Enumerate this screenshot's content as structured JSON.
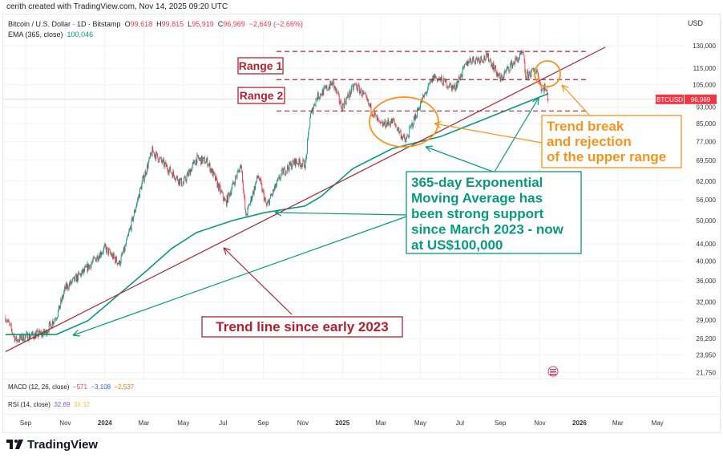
{
  "credit": "cerith created with TradingView.com, Nov 14, 2025 09:20 UTC",
  "legend": {
    "symbol": "Bitcoin / U.S. Dollar · 1D · Bitstamp",
    "o_label": "O",
    "o": "99,618",
    "h_label": "H",
    "h": "99,815",
    "l_label": "L",
    "l": "95,919",
    "c_label": "C",
    "c": "96,969",
    "change": "−2,649 (−2.66%)",
    "ema_label": "EMA (365, close)",
    "ema": "100,046"
  },
  "currency": "USD",
  "price_tag": {
    "symbol": "BTCUSD",
    "value": "96,969"
  },
  "macd": {
    "label": "MACD (12, 26, close)",
    "v1": "−571",
    "v2": "−3,108",
    "v3": "−2,537"
  },
  "rsi": {
    "label": "RSI (14, close)",
    "v1": "32.69",
    "v2": "39.32"
  },
  "brand": "TradingView",
  "colors": {
    "up": "#089981",
    "down": "#f23645",
    "ema": "#089981",
    "trend": "#b2222f",
    "orange": "#f7931a"
  },
  "chart_data": {
    "type": "candlestick",
    "title": "Bitcoin / U.S. Dollar · 1D · Bitstamp",
    "x_unit": "days since 2023-08-01",
    "y_scale": "log",
    "ylim": [
      21750,
      130000
    ],
    "y_ticks": [
      "130,000",
      "115,000",
      "105,000",
      "93,000",
      "85,000",
      "77,000",
      "69,500",
      "62,000",
      "56,000",
      "50,000",
      "44,000",
      "40,000",
      "36,000",
      "32,000",
      "29,000",
      "26,200",
      "23,950",
      "21,750"
    ],
    "y_tick_values": [
      130000,
      115000,
      105000,
      93000,
      85000,
      77000,
      69500,
      62000,
      56000,
      50000,
      44000,
      40000,
      36000,
      32000,
      29000,
      26200,
      23950,
      21750
    ],
    "x_ticks": [
      {
        "label": "Sep",
        "day": 31,
        "bold": false
      },
      {
        "label": "Nov",
        "day": 92,
        "bold": false
      },
      {
        "label": "2024",
        "day": 153,
        "bold": true
      },
      {
        "label": "Mar",
        "day": 213,
        "bold": false
      },
      {
        "label": "May",
        "day": 274,
        "bold": false
      },
      {
        "label": "Jul",
        "day": 335,
        "bold": false
      },
      {
        "label": "Sep",
        "day": 397,
        "bold": false
      },
      {
        "label": "Nov",
        "day": 458,
        "bold": false
      },
      {
        "label": "2025",
        "day": 519,
        "bold": true
      },
      {
        "label": "Mar",
        "day": 578,
        "bold": false
      },
      {
        "label": "May",
        "day": 639,
        "bold": false
      },
      {
        "label": "Jul",
        "day": 700,
        "bold": false
      },
      {
        "label": "Sep",
        "day": 762,
        "bold": false
      },
      {
        "label": "Nov",
        "day": 823,
        "bold": false
      },
      {
        "label": "2026",
        "day": 884,
        "bold": true
      },
      {
        "label": "Mar",
        "day": 943,
        "bold": false
      },
      {
        "label": "May",
        "day": 1004,
        "bold": false
      }
    ],
    "price_path": [
      [
        0,
        29500
      ],
      [
        16,
        26000
      ],
      [
        31,
        26500
      ],
      [
        61,
        27000
      ],
      [
        80,
        30000
      ],
      [
        92,
        34500
      ],
      [
        122,
        38000
      ],
      [
        153,
        43000
      ],
      [
        175,
        39500
      ],
      [
        184,
        43000
      ],
      [
        211,
        62000
      ],
      [
        226,
        73000
      ],
      [
        244,
        68000
      ],
      [
        273,
        61000
      ],
      [
        294,
        70000
      ],
      [
        311,
        69000
      ],
      [
        339,
        55000
      ],
      [
        363,
        68000
      ],
      [
        370,
        51000
      ],
      [
        389,
        64000
      ],
      [
        402,
        54000
      ],
      [
        426,
        65000
      ],
      [
        446,
        69000
      ],
      [
        462,
        68000
      ],
      [
        469,
        88000
      ],
      [
        479,
        98000
      ],
      [
        504,
        106000
      ],
      [
        518,
        93000
      ],
      [
        538,
        105000
      ],
      [
        550,
        100000
      ],
      [
        577,
        84000
      ],
      [
        597,
        86000
      ],
      [
        616,
        77000
      ],
      [
        638,
        94000
      ],
      [
        660,
        110000
      ],
      [
        691,
        103000
      ],
      [
        713,
        120000
      ],
      [
        744,
        122000
      ],
      [
        762,
        108000
      ],
      [
        776,
        116000
      ],
      [
        797,
        124500
      ],
      [
        801,
        110000
      ],
      [
        818,
        114000
      ],
      [
        826,
        102000
      ],
      [
        830,
        104000
      ],
      [
        836,
        96969
      ]
    ],
    "ema_365": [
      [
        0,
        26800
      ],
      [
        78,
        26800
      ],
      [
        127,
        28900
      ],
      [
        214,
        37600
      ],
      [
        256,
        42900
      ],
      [
        294,
        46800
      ],
      [
        350,
        50000
      ],
      [
        399,
        52200
      ],
      [
        461,
        54100
      ],
      [
        486,
        57000
      ],
      [
        535,
        66400
      ],
      [
        596,
        74100
      ],
      [
        670,
        79100
      ],
      [
        732,
        86300
      ],
      [
        794,
        94300
      ],
      [
        836,
        100046
      ]
    ],
    "annotations": {
      "range1": {
        "label": "Range 1",
        "upper": 126000,
        "lower": 108000
      },
      "range2": {
        "label": "Range 2",
        "upper": 108000,
        "lower": 91000
      },
      "trend_line": {
        "label": "Trend line since early 2023",
        "from": [
          0,
          24400
        ],
        "to": [
          924,
          129000
        ]
      },
      "ema_note": [
        "365-day Exponential",
        "Moving Average has",
        "been strong support",
        "since March 2023 - now",
        "at US$100,000"
      ],
      "trend_break_note": [
        "Trend break",
        "and rejection",
        "of the upper range"
      ]
    }
  }
}
